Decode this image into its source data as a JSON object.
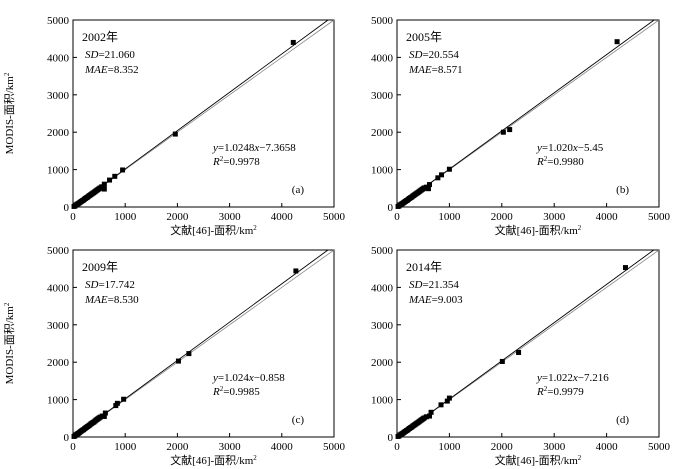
{
  "chart_data": [
    {
      "type": "scatter",
      "panel_label": "(a)",
      "year_label": "2002年",
      "stats": {
        "sd_label": "SD",
        "sd_value": "=21.060",
        "mae_label": "MAE",
        "mae_value": "=8.352"
      },
      "equation": {
        "y": "y",
        "mid": "=1.0248",
        "x": "x",
        "rest": "−7.3658",
        "r2": "R",
        "r2_value": "=0.9978"
      },
      "xlabel": "文献[46]-面积/km²",
      "ylabel": "MODIS-面积/km²",
      "xlim": [
        0,
        5000
      ],
      "ylim": [
        0,
        5000
      ],
      "xticks": [
        "0",
        "1000",
        "2000",
        "3000",
        "4000",
        "5000"
      ],
      "yticks": [
        "0",
        "1000",
        "2000",
        "3000",
        "4000",
        "5000"
      ],
      "fit": {
        "slope": 1.0248,
        "intercept": -7.3658
      },
      "points": [
        [
          20,
          15
        ],
        [
          40,
          30
        ],
        [
          60,
          55
        ],
        [
          80,
          75
        ],
        [
          100,
          90
        ],
        [
          120,
          110
        ],
        [
          140,
          130
        ],
        [
          160,
          150
        ],
        [
          180,
          170
        ],
        [
          200,
          185
        ],
        [
          220,
          210
        ],
        [
          240,
          230
        ],
        [
          260,
          250
        ],
        [
          280,
          265
        ],
        [
          300,
          290
        ],
        [
          320,
          310
        ],
        [
          340,
          330
        ],
        [
          360,
          350
        ],
        [
          380,
          370
        ],
        [
          400,
          385
        ],
        [
          420,
          410
        ],
        [
          440,
          430
        ],
        [
          460,
          450
        ],
        [
          480,
          470
        ],
        [
          500,
          490
        ],
        [
          520,
          510
        ],
        [
          550,
          540
        ],
        [
          600,
          480
        ],
        [
          600,
          610
        ],
        [
          700,
          720
        ],
        [
          800,
          820
        ],
        [
          950,
          990
        ],
        [
          1960,
          1950
        ],
        [
          4220,
          4400
        ]
      ]
    },
    {
      "type": "scatter",
      "panel_label": "(b)",
      "year_label": "2005年",
      "stats": {
        "sd_label": "SD",
        "sd_value": "=20.554",
        "mae_label": "MAE",
        "mae_value": "=8.571"
      },
      "equation": {
        "y": "y",
        "mid": "=1.020",
        "x": "x",
        "rest": "−5.45",
        "r2": "R",
        "r2_value": "=0.9980"
      },
      "xlabel": "文献[46]-面积/km²",
      "ylabel": "",
      "xlim": [
        0,
        5000
      ],
      "ylim": [
        0,
        5000
      ],
      "xticks": [
        "0",
        "1000",
        "2000",
        "3000",
        "4000",
        "5000"
      ],
      "yticks": [
        "0",
        "1000",
        "2000",
        "3000",
        "4000",
        "5000"
      ],
      "fit": {
        "slope": 1.02,
        "intercept": -5.45
      },
      "points": [
        [
          20,
          15
        ],
        [
          40,
          30
        ],
        [
          60,
          55
        ],
        [
          80,
          75
        ],
        [
          100,
          90
        ],
        [
          120,
          110
        ],
        [
          140,
          130
        ],
        [
          160,
          150
        ],
        [
          180,
          170
        ],
        [
          200,
          185
        ],
        [
          220,
          210
        ],
        [
          240,
          230
        ],
        [
          260,
          250
        ],
        [
          280,
          265
        ],
        [
          300,
          290
        ],
        [
          320,
          310
        ],
        [
          340,
          330
        ],
        [
          360,
          350
        ],
        [
          380,
          370
        ],
        [
          400,
          385
        ],
        [
          420,
          410
        ],
        [
          440,
          430
        ],
        [
          460,
          450
        ],
        [
          480,
          470
        ],
        [
          500,
          490
        ],
        [
          520,
          510
        ],
        [
          560,
          530
        ],
        [
          600,
          490
        ],
        [
          620,
          600
        ],
        [
          780,
          780
        ],
        [
          850,
          860
        ],
        [
          1000,
          1010
        ],
        [
          2030,
          2000
        ],
        [
          2150,
          2070
        ],
        [
          4200,
          4420
        ]
      ]
    },
    {
      "type": "scatter",
      "panel_label": "(c)",
      "year_label": "2009年",
      "stats": {
        "sd_label": "SD",
        "sd_value": "=17.742",
        "mae_label": "MAE",
        "mae_value": "=8.530"
      },
      "equation": {
        "y": "y",
        "mid": "=1.024",
        "x": "x",
        "rest": "−0.858",
        "r2": "R",
        "r2_value": "=0.9985"
      },
      "xlabel": "文献[46]-面积/km²",
      "ylabel": "MODIS-面积/km²",
      "xlim": [
        0,
        5000
      ],
      "ylim": [
        0,
        5000
      ],
      "xticks": [
        "0",
        "1000",
        "2000",
        "3000",
        "4000",
        "5000"
      ],
      "yticks": [
        "0",
        "1000",
        "2000",
        "3000",
        "4000",
        "5000"
      ],
      "fit": {
        "slope": 1.024,
        "intercept": -0.858
      },
      "points": [
        [
          20,
          15
        ],
        [
          40,
          35
        ],
        [
          60,
          60
        ],
        [
          80,
          80
        ],
        [
          100,
          95
        ],
        [
          120,
          115
        ],
        [
          140,
          140
        ],
        [
          160,
          160
        ],
        [
          180,
          180
        ],
        [
          200,
          195
        ],
        [
          220,
          220
        ],
        [
          240,
          240
        ],
        [
          260,
          260
        ],
        [
          280,
          280
        ],
        [
          300,
          300
        ],
        [
          320,
          320
        ],
        [
          340,
          345
        ],
        [
          360,
          365
        ],
        [
          380,
          385
        ],
        [
          400,
          400
        ],
        [
          420,
          425
        ],
        [
          440,
          450
        ],
        [
          460,
          470
        ],
        [
          480,
          490
        ],
        [
          500,
          510
        ],
        [
          520,
          530
        ],
        [
          560,
          560
        ],
        [
          600,
          550
        ],
        [
          620,
          640
        ],
        [
          820,
          840
        ],
        [
          850,
          900
        ],
        [
          970,
          1010
        ],
        [
          2020,
          2030
        ],
        [
          2220,
          2230
        ],
        [
          4270,
          4440
        ]
      ]
    },
    {
      "type": "scatter",
      "panel_label": "(d)",
      "year_label": "2014年",
      "stats": {
        "sd_label": "SD",
        "sd_value": "=21.354",
        "mae_label": "MAE",
        "mae_value": "=9.003"
      },
      "equation": {
        "y": "y",
        "mid": "=1.022",
        "x": "x",
        "rest": "−7.216",
        "r2": "R",
        "r2_value": "=0.9979"
      },
      "xlabel": "文献[46]-面积/km²",
      "ylabel": "",
      "xlim": [
        0,
        5000
      ],
      "ylim": [
        0,
        5000
      ],
      "xticks": [
        "0",
        "1000",
        "2000",
        "3000",
        "4000",
        "5000"
      ],
      "yticks": [
        "0",
        "1000",
        "2000",
        "3000",
        "4000",
        "5000"
      ],
      "fit": {
        "slope": 1.022,
        "intercept": -7.216
      },
      "points": [
        [
          20,
          15
        ],
        [
          40,
          30
        ],
        [
          60,
          55
        ],
        [
          80,
          75
        ],
        [
          100,
          90
        ],
        [
          120,
          110
        ],
        [
          140,
          130
        ],
        [
          160,
          150
        ],
        [
          180,
          170
        ],
        [
          200,
          185
        ],
        [
          220,
          210
        ],
        [
          240,
          230
        ],
        [
          260,
          250
        ],
        [
          280,
          265
        ],
        [
          300,
          290
        ],
        [
          320,
          310
        ],
        [
          340,
          330
        ],
        [
          360,
          350
        ],
        [
          380,
          370
        ],
        [
          400,
          385
        ],
        [
          420,
          410
        ],
        [
          440,
          430
        ],
        [
          460,
          450
        ],
        [
          480,
          470
        ],
        [
          500,
          490
        ],
        [
          520,
          510
        ],
        [
          560,
          540
        ],
        [
          620,
          560
        ],
        [
          650,
          660
        ],
        [
          840,
          860
        ],
        [
          960,
          960
        ],
        [
          1000,
          1040
        ],
        [
          2010,
          2020
        ],
        [
          2320,
          2260
        ],
        [
          4360,
          4530
        ]
      ]
    }
  ]
}
